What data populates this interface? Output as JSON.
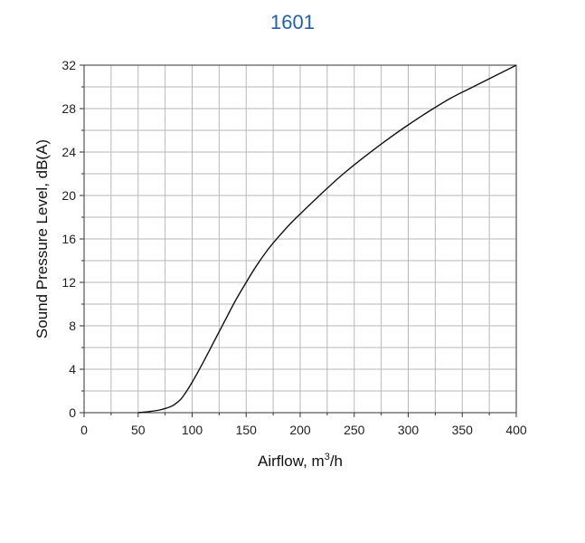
{
  "chart_data": {
    "type": "line",
    "title": "1601",
    "xlabel_prefix": "Airflow, m",
    "xlabel_sup": "3",
    "xlabel_suffix": "/h",
    "ylabel": "Sound Pressure Level, dB(A)",
    "xlim": [
      0,
      400
    ],
    "ylim": [
      0,
      32
    ],
    "x_ticks": [
      0,
      50,
      100,
      150,
      200,
      250,
      300,
      350,
      400
    ],
    "y_ticks": [
      0,
      4,
      8,
      12,
      16,
      20,
      24,
      28,
      32
    ],
    "x_tick_labels": [
      "0",
      "50",
      "100",
      "150",
      "200",
      "250",
      "300",
      "350",
      "400"
    ],
    "y_tick_labels": [
      "0",
      "4",
      "8",
      "12",
      "16",
      "20",
      "24",
      "28",
      "32"
    ],
    "grid": true,
    "line_color": "#111111",
    "series": [
      {
        "x": [
          50,
          60,
          70,
          80,
          85,
          90,
          95,
          100,
          110,
          120,
          130,
          140,
          150,
          160,
          170,
          180,
          190,
          200,
          220,
          240,
          260,
          280,
          300,
          320,
          340,
          360,
          380,
          400
        ],
        "y": [
          0,
          0.1,
          0.25,
          0.55,
          0.85,
          1.3,
          2.0,
          2.8,
          4.6,
          6.5,
          8.4,
          10.3,
          12.0,
          13.6,
          15.0,
          16.2,
          17.3,
          18.3,
          20.2,
          22.0,
          23.6,
          25.1,
          26.5,
          27.8,
          29.0,
          30.0,
          31.0,
          32.0
        ]
      }
    ]
  }
}
